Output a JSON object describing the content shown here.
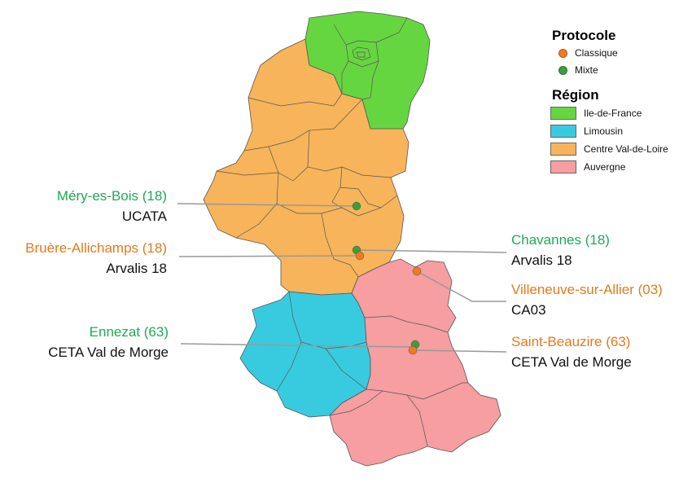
{
  "colors": {
    "ile_de_france": "#66d640",
    "limousin": "#38cbe0",
    "centre": "#f8b45a",
    "auvergne": "#f69ea0",
    "classique": "#f07a1e",
    "mixte": "#3a9e3a",
    "label_green": "#1daa55",
    "label_orange": "#e47a1b"
  },
  "legend": {
    "protocole_title": "Protocole",
    "protocole": [
      {
        "label": "Classique",
        "color": "#f07a1e"
      },
      {
        "label": "Mixte",
        "color": "#3a9e3a"
      }
    ],
    "region_title": "Région",
    "regions": [
      {
        "label": "Ile-de-France",
        "color": "#66d640"
      },
      {
        "label": "Limousin",
        "color": "#38cbe0"
      },
      {
        "label": "Centre Val-de-Loire",
        "color": "#f8b45a"
      },
      {
        "label": "Auvergne",
        "color": "#f69ea0"
      }
    ]
  },
  "sites": [
    {
      "place": "Méry-es-Bois (18)",
      "org": "UCATA",
      "protocole": "Mixte"
    },
    {
      "place": "Bruère-Allichamps (18)",
      "org": "Arvalis 18",
      "protocole": "Classique"
    },
    {
      "place": "Ennezat (63)",
      "org": "CETA Val de Morge",
      "protocole": "Mixte"
    },
    {
      "place": "Chavannes (18)",
      "org": "Arvalis 18",
      "protocole": "Mixte"
    },
    {
      "place": "Villeneuve-sur-Allier (03)",
      "org": "CA03",
      "protocole": "Classique"
    },
    {
      "place": "Saint-Beauzire (63)",
      "org": "CETA Val de Morge",
      "protocole": "Classique"
    }
  ]
}
